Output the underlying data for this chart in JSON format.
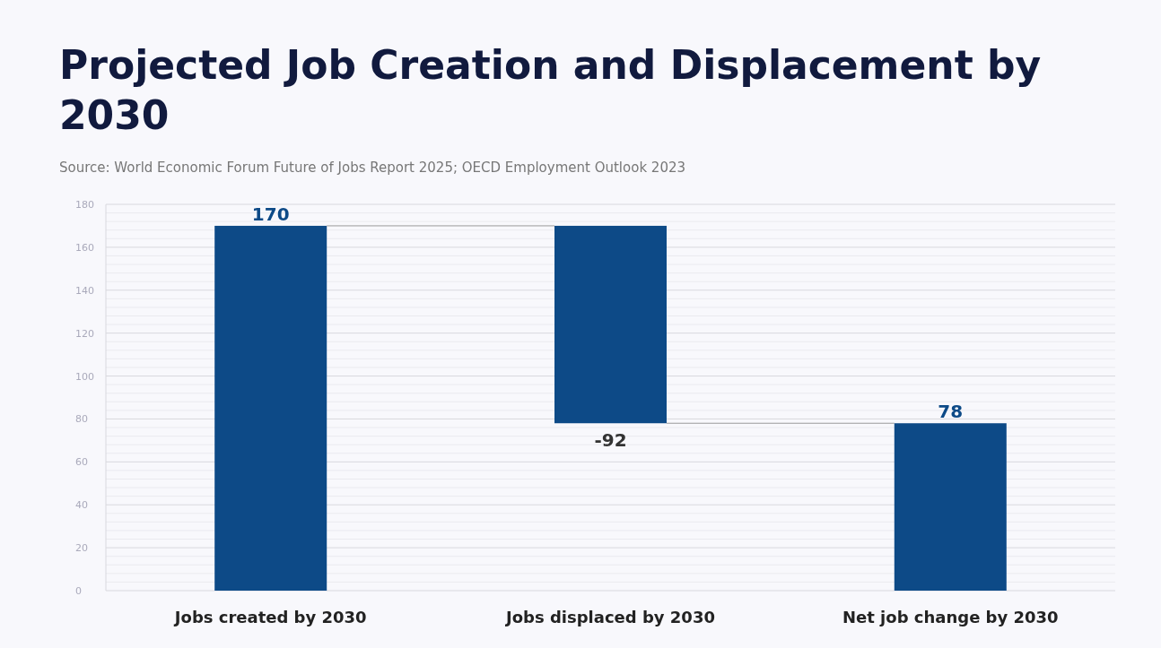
{
  "chart_data": {
    "type": "bar",
    "title": "Projected Job Creation and Displacement by 2030",
    "annotations": [
      "Source: World Economic Forum Future of Jobs Report 2025; OECD Employment Outlook 2023"
    ],
    "categories": [
      "Jobs created by 2030",
      "Jobs displaced by 2030",
      "Net job change by 2030"
    ],
    "values": [
      170,
      -92,
      78
    ],
    "base": [
      0,
      170,
      0
    ],
    "color": "#0d4a87",
    "ylim": [
      0,
      180
    ],
    "yticks": [
      0,
      20,
      40,
      60,
      80,
      100,
      120,
      140,
      160,
      180
    ],
    "grid": "y",
    "data_labels": true
  }
}
